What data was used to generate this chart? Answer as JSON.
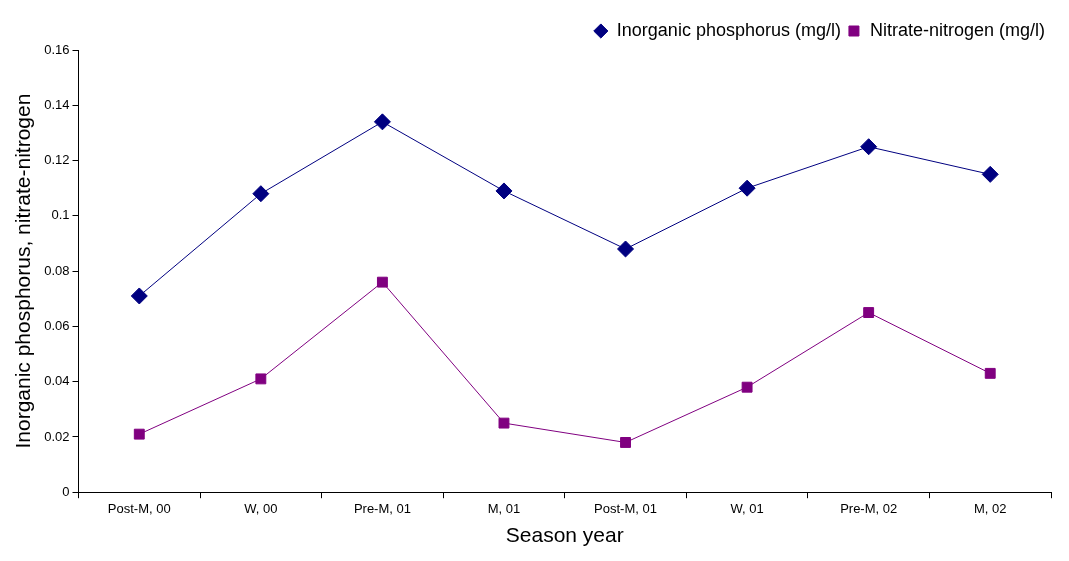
{
  "chart_data": {
    "type": "line",
    "xlabel": "Season year",
    "ylabel": "Inorganic phosphorus, nitrate-nitrogen",
    "categories": [
      "Post-M, 00",
      "W, 00",
      "Pre-M, 01",
      "M, 01",
      "Post-M, 01",
      "W, 01",
      "Pre-M, 02",
      "M, 02"
    ],
    "series": [
      {
        "name": "Inorganic phosphorus (mg/l)",
        "color": "#000080",
        "marker": "diamond",
        "values": [
          0.071,
          0.108,
          0.134,
          0.109,
          0.088,
          0.11,
          0.125,
          0.115
        ]
      },
      {
        "name": "Nitrate-nitrogen (mg/l)",
        "color": "#800080",
        "marker": "square",
        "values": [
          0.021,
          0.041,
          0.076,
          0.025,
          0.018,
          0.038,
          0.065,
          0.043
        ]
      }
    ],
    "ylim": [
      0,
      0.16
    ],
    "yticks": [
      0,
      0.02,
      0.04,
      0.06,
      0.08,
      0.1,
      0.12,
      0.14,
      0.16
    ],
    "grid": false,
    "legend": "top right",
    "line_style": "solid"
  }
}
